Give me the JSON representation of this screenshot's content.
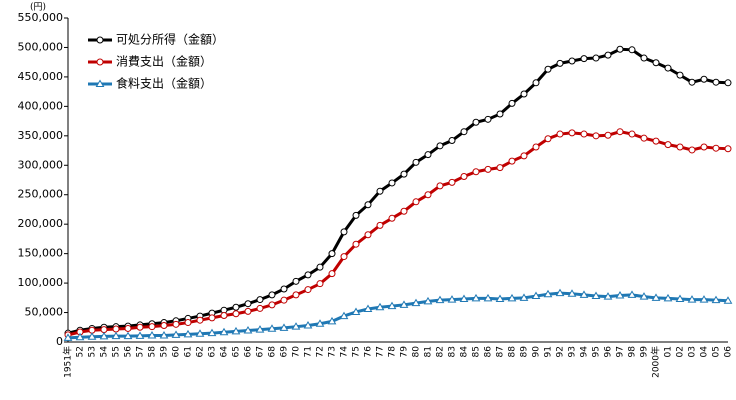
{
  "chart_data": {
    "type": "line",
    "y_unit": "(円)",
    "categories": [
      "1951年",
      "52",
      "53",
      "54",
      "55",
      "56",
      "57",
      "58",
      "59",
      "60",
      "61",
      "62",
      "63",
      "64",
      "65",
      "66",
      "67",
      "68",
      "69",
      "70",
      "71",
      "72",
      "73",
      "74",
      "75",
      "76",
      "77",
      "78",
      "79",
      "80",
      "81",
      "82",
      "83",
      "84",
      "85",
      "86",
      "87",
      "88",
      "89",
      "90",
      "91",
      "92",
      "93",
      "94",
      "95",
      "96",
      "97",
      "98",
      "99",
      "2000年",
      "01",
      "02",
      "03",
      "04",
      "05",
      "06"
    ],
    "series": [
      {
        "name": "可処分所得（金額）",
        "color": "#000000",
        "marker": "circle",
        "values": [
          15000,
          20000,
          23000,
          25000,
          26000,
          27000,
          29000,
          31000,
          33000,
          36000,
          40000,
          44000,
          49000,
          54000,
          59000,
          65000,
          72000,
          80000,
          90000,
          103000,
          114000,
          127000,
          150000,
          187000,
          215000,
          233000,
          256000,
          270000,
          285000,
          305000,
          318000,
          333000,
          342000,
          357000,
          373000,
          378000,
          387000,
          405000,
          421000,
          440000,
          463000,
          473000,
          477000,
          481000,
          482000,
          487000,
          497000,
          496000,
          482000,
          474000,
          465000,
          453000,
          441000,
          446000,
          441000,
          440000
        ]
      },
      {
        "name": "消費支出（金額）",
        "color": "#c00000",
        "marker": "circle",
        "values": [
          12000,
          17000,
          20000,
          21000,
          22000,
          23000,
          25000,
          26000,
          28000,
          30000,
          33000,
          37000,
          41000,
          45000,
          48000,
          52000,
          57000,
          63000,
          71000,
          80000,
          89000,
          99000,
          116000,
          145000,
          166000,
          182000,
          198000,
          210000,
          222000,
          238000,
          250000,
          265000,
          271000,
          281000,
          289000,
          293000,
          296000,
          307000,
          316000,
          331000,
          345000,
          353000,
          355000,
          353000,
          350000,
          351000,
          357000,
          353000,
          346000,
          341000,
          335000,
          331000,
          326000,
          331000,
          329000,
          328000
        ]
      },
      {
        "name": "食料支出（金額）",
        "color": "#1f78b4",
        "marker": "triangle",
        "values": [
          7000,
          8000,
          9000,
          9500,
          10000,
          10000,
          10500,
          11000,
          11000,
          12000,
          13000,
          14000,
          15000,
          16500,
          18000,
          19500,
          21000,
          22500,
          24000,
          26000,
          28000,
          31000,
          35000,
          44000,
          51000,
          56000,
          59000,
          61000,
          63000,
          66000,
          69000,
          71000,
          72000,
          73000,
          74000,
          74000,
          73000,
          74000,
          75000,
          78000,
          81000,
          83000,
          82000,
          80000,
          78000,
          77000,
          79000,
          80000,
          77000,
          75000,
          74000,
          73000,
          72000,
          72000,
          71000,
          70000
        ]
      }
    ],
    "ylim": [
      0,
      550000
    ],
    "yticks": [
      0,
      {
        "value": 50000,
        "label": "50,000"
      },
      {
        "value": 100000,
        "label": "100,000"
      },
      {
        "value": 150000,
        "label": "150,000"
      },
      {
        "value": 200000,
        "label": "200,000"
      },
      {
        "value": 250000,
        "label": "250,000"
      },
      {
        "value": 300000,
        "label": "300,000"
      },
      {
        "value": 350000,
        "label": "350,000"
      },
      {
        "value": 400000,
        "label": "400,000"
      },
      {
        "value": 450000,
        "label": "450,000"
      },
      {
        "value": 500000,
        "label": "500,000"
      },
      {
        "value": 550000,
        "label": "550,000"
      }
    ],
    "grid": false,
    "legend": "top-left"
  }
}
